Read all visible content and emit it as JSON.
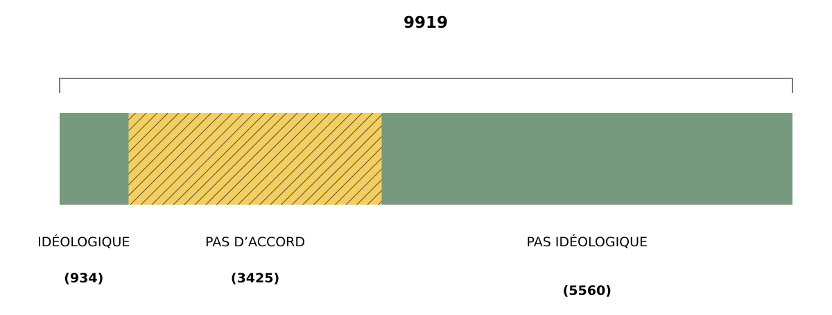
{
  "chart_data": {
    "type": "bar",
    "orientation": "horizontal-stacked",
    "total": "9919",
    "categories": [
      "IDÉOLOGIQUE",
      "PAS D’ACCORD",
      "PAS IDÉOLOGIQUE"
    ],
    "values": [
      934,
      3425,
      5560
    ],
    "value_labels": [
      "(934)",
      "(3425)",
      "(5560)"
    ],
    "colors": [
      "#77997d",
      "#f3cf62",
      "#77997d"
    ],
    "patterns": [
      "solid",
      "diagonal-hatch",
      "solid"
    ],
    "hatch_color": "#2a2a1e",
    "xlim": [
      0,
      9919
    ],
    "grid": false
  }
}
